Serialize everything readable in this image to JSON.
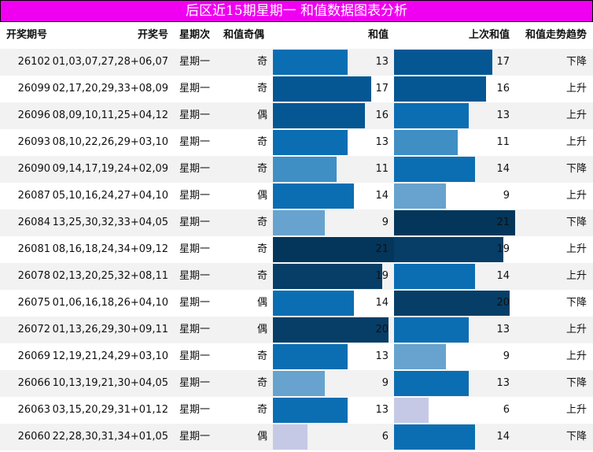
{
  "title": "后区近15期星期一 和值数据图表分析",
  "headers": {
    "issue": "开奖期号",
    "numbers": "开奖号",
    "weekday": "星期次",
    "parity": "和值奇偶",
    "sum": "和值",
    "prev_sum": "上次和值",
    "trend": "和值走势趋势"
  },
  "colors": {
    "title_bg": "#f000f0",
    "scale": [
      "#c6c9e6",
      "#93b5d8",
      "#67a3ce",
      "#3f8fc5",
      "#2584c1",
      "#0b6eb2",
      "#005fa0",
      "#045792",
      "#074a7e",
      "#063e67",
      "#03365a"
    ]
  },
  "rows": [
    {
      "issue": "26102",
      "numbers": "01,03,07,27,28+06,07",
      "weekday": "星期一",
      "parity": "奇",
      "sum": "13",
      "prev_sum": "17",
      "trend": "下降"
    },
    {
      "issue": "26099",
      "numbers": "02,17,20,29,33+08,09",
      "weekday": "星期一",
      "parity": "奇",
      "sum": "17",
      "prev_sum": "16",
      "trend": "上升"
    },
    {
      "issue": "26096",
      "numbers": "08,09,10,11,25+04,12",
      "weekday": "星期一",
      "parity": "偶",
      "sum": "16",
      "prev_sum": "13",
      "trend": "上升"
    },
    {
      "issue": "26093",
      "numbers": "08,10,22,26,29+03,10",
      "weekday": "星期一",
      "parity": "奇",
      "sum": "13",
      "prev_sum": "11",
      "trend": "上升"
    },
    {
      "issue": "26090",
      "numbers": "09,14,17,19,24+02,09",
      "weekday": "星期一",
      "parity": "奇",
      "sum": "11",
      "prev_sum": "14",
      "trend": "下降"
    },
    {
      "issue": "26087",
      "numbers": "05,10,16,24,27+04,10",
      "weekday": "星期一",
      "parity": "偶",
      "sum": "14",
      "prev_sum": "9",
      "trend": "上升"
    },
    {
      "issue": "26084",
      "numbers": "13,25,30,32,33+04,05",
      "weekday": "星期一",
      "parity": "奇",
      "sum": "9",
      "prev_sum": "21",
      "trend": "下降"
    },
    {
      "issue": "26081",
      "numbers": "08,16,18,24,34+09,12",
      "weekday": "星期一",
      "parity": "奇",
      "sum": "21",
      "prev_sum": "19",
      "trend": "上升"
    },
    {
      "issue": "26078",
      "numbers": "02,13,20,25,32+08,11",
      "weekday": "星期一",
      "parity": "奇",
      "sum": "19",
      "prev_sum": "14",
      "trend": "上升"
    },
    {
      "issue": "26075",
      "numbers": "01,06,16,18,26+04,10",
      "weekday": "星期一",
      "parity": "偶",
      "sum": "14",
      "prev_sum": "20",
      "trend": "下降"
    },
    {
      "issue": "26072",
      "numbers": "01,13,26,29,30+09,11",
      "weekday": "星期一",
      "parity": "偶",
      "sum": "20",
      "prev_sum": "13",
      "trend": "上升"
    },
    {
      "issue": "26069",
      "numbers": "12,19,21,24,29+03,10",
      "weekday": "星期一",
      "parity": "奇",
      "sum": "13",
      "prev_sum": "9",
      "trend": "上升"
    },
    {
      "issue": "26066",
      "numbers": "10,13,19,21,30+04,05",
      "weekday": "星期一",
      "parity": "奇",
      "sum": "9",
      "prev_sum": "13",
      "trend": "下降"
    },
    {
      "issue": "26063",
      "numbers": "03,15,20,29,31+01,12",
      "weekday": "星期一",
      "parity": "奇",
      "sum": "13",
      "prev_sum": "6",
      "trend": "上升"
    },
    {
      "issue": "26060",
      "numbers": "22,28,30,31,34+01,05",
      "weekday": "星期一",
      "parity": "偶",
      "sum": "6",
      "prev_sum": "14",
      "trend": "下降"
    }
  ],
  "chart_data": {
    "type": "table",
    "columns": [
      "开奖期号",
      "开奖号",
      "星期次",
      "和值奇偶",
      "和值",
      "上次和值",
      "和值走势趋势"
    ],
    "sum_range": [
      0,
      21
    ],
    "sum_values": [
      13,
      17,
      16,
      13,
      11,
      14,
      9,
      21,
      19,
      14,
      20,
      13,
      9,
      13,
      6
    ],
    "prev_sum_values": [
      17,
      16,
      13,
      11,
      14,
      9,
      21,
      19,
      14,
      20,
      13,
      9,
      13,
      6,
      14
    ]
  }
}
